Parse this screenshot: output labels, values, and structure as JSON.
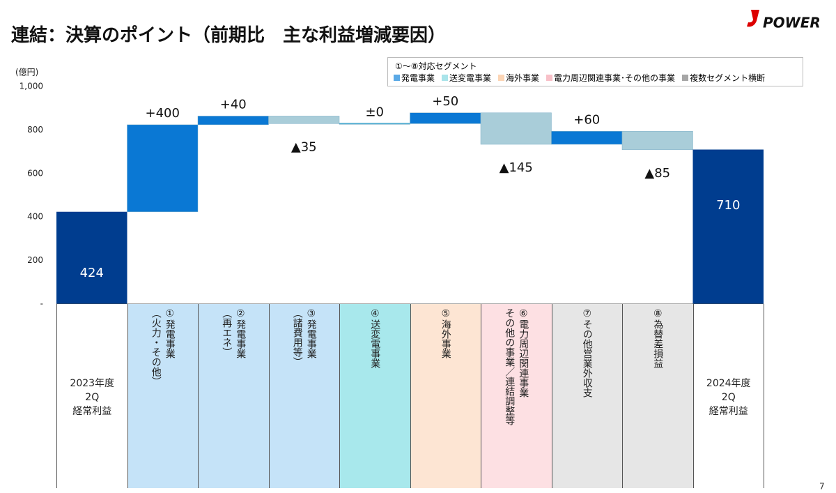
{
  "title": "連結：決算のポイント（前期比　主な利益増減要因）",
  "logo": "POWER",
  "page_number": "7",
  "chart_data": {
    "type": "waterfall",
    "y_label": "(億円)",
    "categories": [
      "2023年度\n2Q\n経常利益",
      "①発電事業\n（火力・その他）",
      "②発電事業\n（再エネ）",
      "③発電事業\n（諸費用等）",
      "④送変電事業",
      "⑤海外事業",
      "⑥電力周辺関連事業\nその他の事業／連結調整等",
      "⑦その他営業外収支",
      "⑧為替差損益",
      "2024年度\n2Q\n経常利益"
    ],
    "values": [
      424,
      400,
      40,
      -35,
      0,
      50,
      -145,
      60,
      -85,
      710
    ],
    "value_labels": [
      "424",
      "+400",
      "+40",
      "▲35",
      "±0",
      "+50",
      "▲145",
      "+60",
      "▲85",
      "710"
    ],
    "colors": [
      "#003d8f",
      "#0a78d4",
      "#0a78d4",
      "#a9cdd9",
      "#5bb5d8",
      "#0a78d4",
      "#a9cdd9",
      "#0a78d4",
      "#a9cdd9",
      "#003d8f"
    ],
    "column_colors": [
      "#ffffff",
      "#c5e3f8",
      "#c5e3f8",
      "#c5e3f8",
      "#a8e8ec",
      "#fde5d3",
      "#fde0e3",
      "#e6e6e6",
      "#e6e6e6",
      "#ffffff"
    ],
    "ylim": [
      0,
      1000
    ],
    "yticks": [
      {
        "value": 0,
        "label": "-"
      },
      200,
      400,
      600,
      800,
      {
        "value": 1000,
        "label": "1,000"
      }
    ],
    "legend": {
      "title": "①～⑧対応セグメント",
      "items": [
        {
          "name": "発電事業",
          "color": "#5aa9e6"
        },
        {
          "name": "送変電事業",
          "color": "#a9e4ea"
        },
        {
          "name": "海外事業",
          "color": "#fcd5b5"
        },
        {
          "name": "電力周辺関連事業･その他の事業",
          "color": "#f8c0c8"
        },
        {
          "name": "複数セグメント横断",
          "color": "#a6a6a6"
        }
      ]
    }
  }
}
